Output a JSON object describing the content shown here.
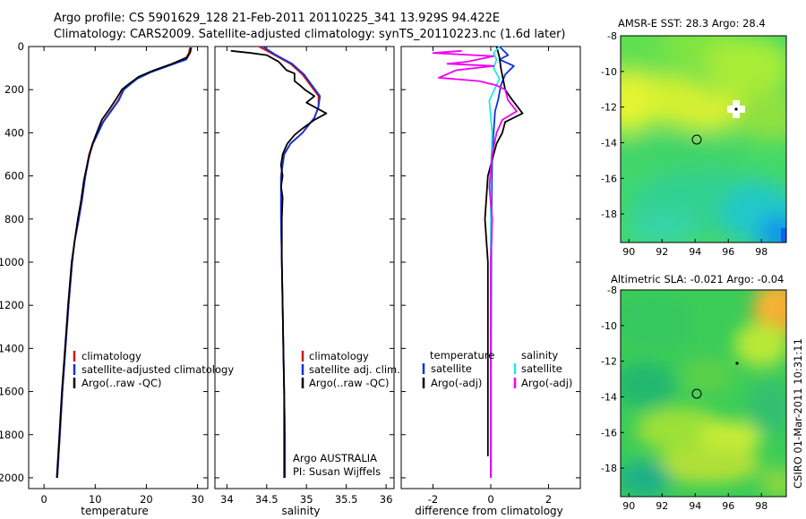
{
  "header": {
    "line1": "Argo profile: CS 5901629_128 21-Feb-2011 20110225_341 13.929S 94.422E",
    "line2": "Climatology: CARS2009. Satellite-adjusted climatology: synTS_20110223.nc (1.6d later)"
  },
  "side_stamp": "CSIRO 01-Mar-2011 10:31:11",
  "colors": {
    "red": "#d01818",
    "blue": "#1030e0",
    "black": "#000000",
    "cyan": "#20e8e8",
    "magenta": "#f000f0"
  },
  "chart_data": [
    {
      "type": "line",
      "panel": "temperature",
      "xlabel": "temperature",
      "ylabel": "",
      "xlim": [
        -3,
        32
      ],
      "ylim": [
        2050,
        0
      ],
      "xticks": [
        0,
        10,
        20,
        30
      ],
      "yticks": [
        0,
        200,
        400,
        600,
        800,
        1000,
        1200,
        1400,
        1600,
        1800,
        2000
      ],
      "legend": {
        "position": "lower-right",
        "entries": [
          "climatology",
          "satellite-adjusted climatology",
          "Argo(..raw -QC)"
        ]
      },
      "series": [
        {
          "name": "climatology",
          "color": "red",
          "points": [
            [
              28.5,
              5
            ],
            [
              28.3,
              30
            ],
            [
              27.6,
              60
            ],
            [
              24,
              90
            ],
            [
              20.5,
              120
            ],
            [
              18,
              150
            ],
            [
              16.5,
              180
            ],
            [
              15.5,
              200
            ],
            [
              14.5,
              250
            ],
            [
              13,
              300
            ],
            [
              11.5,
              350
            ],
            [
              10.5,
              400
            ],
            [
              9.5,
              450
            ],
            [
              8.8,
              500
            ],
            [
              8,
              600
            ],
            [
              7.5,
              700
            ],
            [
              6.8,
              800
            ],
            [
              6,
              900
            ],
            [
              5.5,
              1000
            ],
            [
              4.8,
              1200
            ],
            [
              4.2,
              1400
            ],
            [
              3.6,
              1600
            ],
            [
              3.1,
              1800
            ],
            [
              2.6,
              2000
            ]
          ]
        },
        {
          "name": "satellite-adjusted climatology",
          "color": "blue",
          "points": [
            [
              28.8,
              5
            ],
            [
              28.5,
              30
            ],
            [
              27.8,
              60
            ],
            [
              24.3,
              90
            ],
            [
              20.8,
              120
            ],
            [
              18.2,
              150
            ],
            [
              16.6,
              180
            ],
            [
              15.6,
              200
            ],
            [
              14.6,
              250
            ],
            [
              13.1,
              300
            ],
            [
              11.6,
              350
            ],
            [
              10.6,
              400
            ],
            [
              9.6,
              450
            ],
            [
              8.9,
              500
            ],
            [
              8.1,
              600
            ],
            [
              7.5,
              700
            ],
            [
              6.8,
              800
            ],
            [
              6,
              900
            ],
            [
              5.5,
              1000
            ],
            [
              4.8,
              1200
            ],
            [
              4.2,
              1400
            ],
            [
              3.6,
              1600
            ],
            [
              3.1,
              1800
            ],
            [
              2.6,
              2000
            ]
          ]
        },
        {
          "name": "Argo(..raw -QC)",
          "color": "black",
          "points": [
            [
              28.7,
              5
            ],
            [
              28.6,
              25
            ],
            [
              28,
              50
            ],
            [
              25,
              80
            ],
            [
              21.5,
              110
            ],
            [
              18.5,
              140
            ],
            [
              16.5,
              175
            ],
            [
              15.2,
              200
            ],
            [
              14.2,
              240
            ],
            [
              12.8,
              290
            ],
            [
              11.3,
              340
            ],
            [
              10.3,
              400
            ],
            [
              9.5,
              450
            ],
            [
              8.7,
              520
            ],
            [
              7.8,
              620
            ],
            [
              7.2,
              720
            ],
            [
              6.6,
              800
            ],
            [
              6,
              900
            ],
            [
              5.4,
              1000
            ],
            [
              4.7,
              1200
            ],
            [
              4.1,
              1400
            ],
            [
              3.5,
              1600
            ],
            [
              3,
              1800
            ],
            [
              2.5,
              2000
            ]
          ]
        }
      ]
    },
    {
      "type": "line",
      "panel": "salinity",
      "xlabel": "salinity",
      "ylabel": "",
      "xlim": [
        33.85,
        36.1
      ],
      "ylim": [
        2050,
        0
      ],
      "xticks": [
        34,
        34.5,
        35,
        35.5,
        36
      ],
      "xtick_labels": [
        "34",
        "34.5",
        "35",
        "35.5",
        "36"
      ],
      "legend": {
        "position": "lower-right",
        "entries": [
          "climatology",
          "satellite adj. clim.",
          "Argo(..raw -QC)"
        ]
      },
      "annotation": [
        "Argo AUSTRALIA",
        "PI: Susan Wijffels"
      ],
      "series": [
        {
          "name": "climatology",
          "color": "red",
          "points": [
            [
              34.4,
              0
            ],
            [
              34.6,
              40
            ],
            [
              34.8,
              80
            ],
            [
              34.95,
              130
            ],
            [
              35.05,
              180
            ],
            [
              35.15,
              230
            ],
            [
              35.15,
              280
            ],
            [
              35.1,
              330
            ],
            [
              34.95,
              400
            ],
            [
              34.8,
              450
            ],
            [
              34.72,
              500
            ],
            [
              34.68,
              600
            ],
            [
              34.68,
              800
            ],
            [
              34.69,
              1000
            ],
            [
              34.7,
              1200
            ],
            [
              34.71,
              1400
            ],
            [
              34.72,
              1600
            ],
            [
              34.73,
              1800
            ],
            [
              34.73,
              2000
            ]
          ]
        },
        {
          "name": "satellite adj. clim.",
          "color": "blue",
          "points": [
            [
              34.45,
              0
            ],
            [
              34.62,
              40
            ],
            [
              34.82,
              80
            ],
            [
              34.97,
              130
            ],
            [
              35.07,
              180
            ],
            [
              35.17,
              230
            ],
            [
              35.15,
              280
            ],
            [
              35.1,
              330
            ],
            [
              34.95,
              400
            ],
            [
              34.8,
              450
            ],
            [
              34.72,
              500
            ],
            [
              34.68,
              600
            ],
            [
              34.68,
              800
            ],
            [
              34.69,
              1000
            ],
            [
              34.7,
              1200
            ],
            [
              34.71,
              1400
            ],
            [
              34.72,
              1600
            ],
            [
              34.73,
              1800
            ],
            [
              34.73,
              2000
            ]
          ]
        },
        {
          "name": "Argo(..raw -QC)",
          "color": "black",
          "points": [
            [
              34.05,
              20
            ],
            [
              34.3,
              30
            ],
            [
              34.5,
              40
            ],
            [
              34.65,
              70
            ],
            [
              34.75,
              110
            ],
            [
              34.85,
              125
            ],
            [
              34.85,
              160
            ],
            [
              34.92,
              180
            ],
            [
              34.98,
              200
            ],
            [
              35.1,
              230
            ],
            [
              35.0,
              260
            ],
            [
              35.15,
              290
            ],
            [
              35.25,
              310
            ],
            [
              35.1,
              340
            ],
            [
              34.95,
              380
            ],
            [
              34.85,
              410
            ],
            [
              34.76,
              450
            ],
            [
              34.7,
              500
            ],
            [
              34.68,
              550
            ],
            [
              34.7,
              600
            ],
            [
              34.68,
              650
            ],
            [
              34.7,
              700
            ],
            [
              34.69,
              800
            ],
            [
              34.69,
              1000
            ],
            [
              34.7,
              1200
            ],
            [
              34.71,
              1400
            ],
            [
              34.72,
              1600
            ],
            [
              34.72,
              1800
            ],
            [
              34.72,
              2000
            ]
          ]
        }
      ]
    },
    {
      "type": "line",
      "panel": "difference",
      "xlabel": "difference from climatology",
      "ylabel": "",
      "xlim": [
        -3.1,
        3.1
      ],
      "ylim": [
        2050,
        0
      ],
      "xticks": [
        -2,
        0,
        2
      ],
      "legend": {
        "position": "lower-center",
        "entries": [
          "temperature",
          "satellite",
          "Argo(-adj)",
          "salinity",
          "satellite",
          "Argo(-adj)"
        ]
      },
      "series": [
        {
          "name": "temperature satellite",
          "color": "blue",
          "points": [
            [
              0.3,
              0
            ],
            [
              0.6,
              40
            ],
            [
              0.3,
              60
            ],
            [
              0.8,
              90
            ],
            [
              0.5,
              130
            ],
            [
              0.35,
              180
            ],
            [
              0.25,
              250
            ],
            [
              0.15,
              300
            ],
            [
              0.1,
              400
            ],
            [
              0.05,
              500
            ],
            [
              0.03,
              700
            ],
            [
              0.02,
              1000
            ],
            [
              0.01,
              1500
            ],
            [
              0.01,
              2000
            ]
          ]
        },
        {
          "name": "temperature Argo(-adj)",
          "color": "black",
          "points": [
            [
              0.2,
              0
            ],
            [
              0.3,
              50
            ],
            [
              0.35,
              100
            ],
            [
              0.5,
              200
            ],
            [
              0.7,
              240
            ],
            [
              1.1,
              310
            ],
            [
              0.5,
              350
            ],
            [
              0.4,
              400
            ],
            [
              0.2,
              450
            ],
            [
              0.1,
              500
            ],
            [
              -0.1,
              600
            ],
            [
              -0.2,
              800
            ],
            [
              -0.1,
              1000
            ],
            [
              -0.1,
              1500
            ],
            [
              -0.1,
              1800
            ],
            [
              -0.1,
              1900
            ]
          ]
        },
        {
          "name": "salinity satellite",
          "color": "cyan",
          "points": [
            [
              0.3,
              0
            ],
            [
              0.1,
              30
            ],
            [
              0.2,
              60
            ],
            [
              0.1,
              100
            ],
            [
              0.3,
              150
            ],
            [
              -0.05,
              250
            ],
            [
              0.05,
              400
            ],
            [
              0,
              600
            ],
            [
              0,
              1000
            ],
            [
              0,
              2000
            ]
          ]
        },
        {
          "name": "salinity Argo(-adj)",
          "color": "magenta",
          "points": [
            [
              -1,
              20
            ],
            [
              -2,
              30
            ],
            [
              0.1,
              45
            ],
            [
              -0.8,
              70
            ],
            [
              -1.5,
              80
            ],
            [
              0.1,
              90
            ],
            [
              -1.2,
              110
            ],
            [
              -1.8,
              145
            ],
            [
              -0.4,
              160
            ],
            [
              0.2,
              180
            ],
            [
              0.5,
              200
            ],
            [
              0.6,
              250
            ],
            [
              0.9,
              300
            ],
            [
              0.4,
              340
            ],
            [
              0.2,
              400
            ],
            [
              0.05,
              500
            ],
            [
              -0.05,
              650
            ],
            [
              0.05,
              800
            ],
            [
              0,
              1000
            ],
            [
              0,
              1500
            ],
            [
              0,
              2000
            ]
          ]
        }
      ]
    },
    {
      "type": "heatmap",
      "panel": "sst_map",
      "title": "AMSR-E SST: 28.3 Argo: 28.4",
      "xlim": [
        89.5,
        99.5
      ],
      "ylim": [
        -19.6,
        -8
      ],
      "xticks": [
        90,
        92,
        94,
        96,
        98
      ],
      "yticks": [
        -8,
        -10,
        -12,
        -14,
        -16,
        -18
      ],
      "profile_marker": {
        "lon": 94.42,
        "lat": -13.93
      },
      "argo_marker": {
        "lon": 96.8,
        "lat": -12.1
      }
    },
    {
      "type": "heatmap",
      "panel": "sla_map",
      "title": "Altimetric SLA: -0.021 Argo: -0.04",
      "xlim": [
        89.5,
        99.5
      ],
      "ylim": [
        -19.6,
        -8
      ],
      "xticks": [
        90,
        92,
        94,
        96,
        98
      ],
      "yticks": [
        -8,
        -10,
        -12,
        -14,
        -16,
        -18
      ],
      "profile_marker": {
        "lon": 94.42,
        "lat": -13.93
      },
      "argo_marker": {
        "lon": 96.8,
        "lat": -12.1
      }
    }
  ]
}
